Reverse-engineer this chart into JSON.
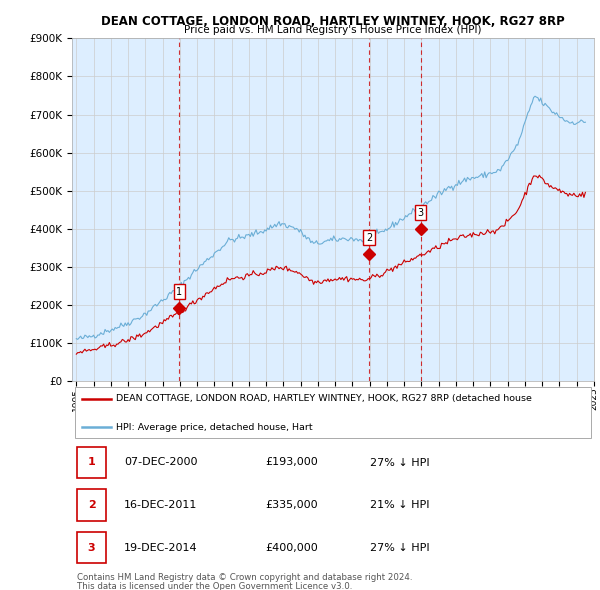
{
  "title": "DEAN COTTAGE, LONDON ROAD, HARTLEY WINTNEY, HOOK, RG27 8RP",
  "subtitle": "Price paid vs. HM Land Registry's House Price Index (HPI)",
  "ylim": [
    0,
    900000
  ],
  "yticks": [
    0,
    100000,
    200000,
    300000,
    400000,
    500000,
    600000,
    700000,
    800000,
    900000
  ],
  "ytick_labels": [
    "£0",
    "£100K",
    "£200K",
    "£300K",
    "£400K",
    "£500K",
    "£600K",
    "£700K",
    "£800K",
    "£900K"
  ],
  "hpi_color": "#6baed6",
  "price_color": "#cc0000",
  "vline_color": "#cc0000",
  "grid_color": "#cccccc",
  "bg_color": "#ffffff",
  "chart_bg_color": "#ddeeff",
  "sale_points": [
    {
      "year": 2000.96,
      "price": 193000,
      "label": "1"
    },
    {
      "year": 2011.96,
      "price": 335000,
      "label": "2"
    },
    {
      "year": 2014.96,
      "price": 400000,
      "label": "3"
    }
  ],
  "table_rows": [
    {
      "num": "1",
      "date": "07-DEC-2000",
      "price": "£193,000",
      "pct": "27% ↓ HPI"
    },
    {
      "num": "2",
      "date": "16-DEC-2011",
      "price": "£335,000",
      "pct": "21% ↓ HPI"
    },
    {
      "num": "3",
      "date": "19-DEC-2014",
      "price": "£400,000",
      "pct": "27% ↓ HPI"
    }
  ],
  "legend_line1": "DEAN COTTAGE, LONDON ROAD, HARTLEY WINTNEY, HOOK, RG27 8RP (detached house",
  "legend_line2": "HPI: Average price, detached house, Hart",
  "footer_line1": "Contains HM Land Registry data © Crown copyright and database right 2024.",
  "footer_line2": "This data is licensed under the Open Government Licence v3.0."
}
